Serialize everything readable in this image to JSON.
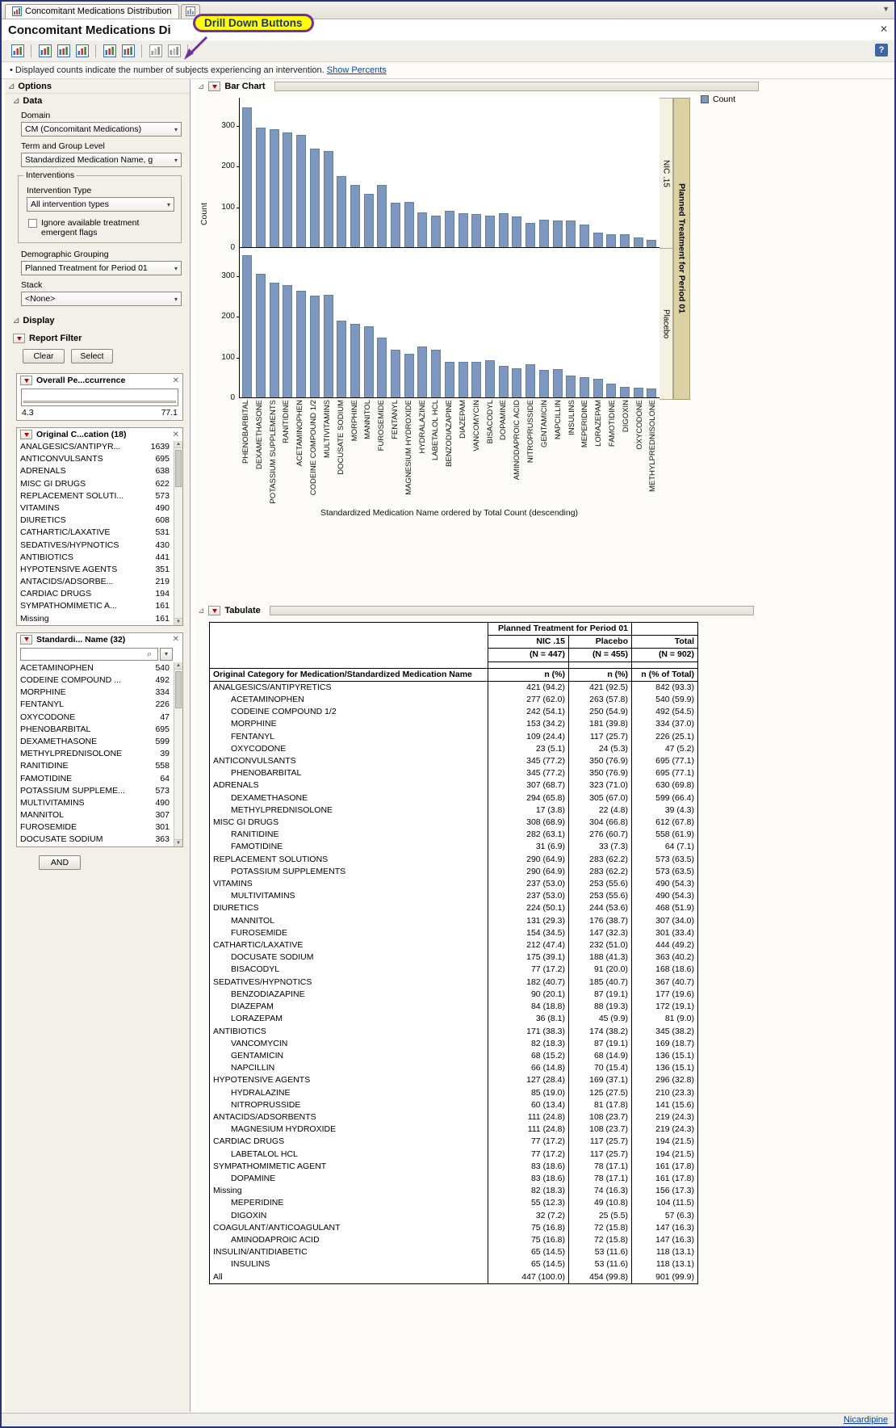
{
  "icons": {
    "disclosure": "⊿",
    "close": "✕",
    "dropdown": "▾",
    "search": "⌕",
    "bullet": "•",
    "help": "?",
    "menu_chevron": "▼",
    "scroll_up": "▲",
    "scroll_down": "▼"
  },
  "window": {
    "tab_title": "Concomitant Medications Distribution",
    "page_title": "Concomitant Medications Di",
    "callout": "Drill Down Buttons"
  },
  "toolbar": {
    "icons": [
      "open-report-icon",
      "data-table-icon",
      "summary-data-table-icon",
      "subset-data-table-icon",
      "graph-builder-icon",
      "distribution-icon",
      "previous-analysis-icon",
      "next-analysis-icon"
    ]
  },
  "info_bar": {
    "text": "Displayed counts indicate the number of subjects experiencing an intervention.",
    "link": "Show Percents"
  },
  "sidebar": {
    "title": "Options",
    "data_section": {
      "title": "Data",
      "domain_label": "Domain",
      "domain_value": "CM (Concomitant Medications)",
      "term_label": "Term and Group Level",
      "term_value": "Standardized Medication Name, g",
      "interventions_title": "Interventions",
      "intervention_type_label": "Intervention Type",
      "intervention_type_value": "All intervention types",
      "checkbox_label": "Ignore available treatment emergent flags",
      "demo_label": "Demographic Grouping",
      "demo_value": "Planned Treatment for Period 01",
      "stack_label": "Stack",
      "stack_value": "<None>"
    },
    "display_section": {
      "title": "Display",
      "report_filter": "Report Filter",
      "clear": "Clear",
      "select": "Select",
      "and_button": "AND"
    },
    "filter1": {
      "title": "Overall Pe...ccurrence",
      "min": "4.3",
      "max": "77.1"
    },
    "filter2": {
      "title": "Original C...cation (18)",
      "items": [
        {
          "label": "ANALGESICS/ANTIPYR...",
          "value": "1639"
        },
        {
          "label": "ANTICONVULSANTS",
          "value": "695"
        },
        {
          "label": "ADRENALS",
          "value": "638"
        },
        {
          "label": "MISC GI DRUGS",
          "value": "622"
        },
        {
          "label": "REPLACEMENT SOLUTI...",
          "value": "573"
        },
        {
          "label": "VITAMINS",
          "value": "490"
        },
        {
          "label": "DIURETICS",
          "value": "608"
        },
        {
          "label": "CATHARTIC/LAXATIVE",
          "value": "531"
        },
        {
          "label": "SEDATIVES/HYPNOTICS",
          "value": "430"
        },
        {
          "label": "ANTIBIOTICS",
          "value": "441"
        },
        {
          "label": "HYPOTENSIVE AGENTS",
          "value": "351"
        },
        {
          "label": "ANTACIDS/ADSORBE...",
          "value": "219"
        },
        {
          "label": "CARDIAC DRUGS",
          "value": "194"
        },
        {
          "label": "SYMPATHOMIMETIC A...",
          "value": "161"
        },
        {
          "label": "Missing",
          "value": "161"
        }
      ]
    },
    "filter3": {
      "title": "Standardi... Name (32)",
      "items": [
        {
          "label": "ACETAMINOPHEN",
          "value": "540"
        },
        {
          "label": "CODEINE COMPOUND ...",
          "value": "492"
        },
        {
          "label": "MORPHINE",
          "value": "334"
        },
        {
          "label": "FENTANYL",
          "value": "226"
        },
        {
          "label": "OXYCODONE",
          "value": "47"
        },
        {
          "label": "PHENOBARBITAL",
          "value": "695"
        },
        {
          "label": "DEXAMETHASONE",
          "value": "599"
        },
        {
          "label": "METHYLPREDNISOLONE",
          "value": "39"
        },
        {
          "label": "RANITIDINE",
          "value": "558"
        },
        {
          "label": "FAMOTIDINE",
          "value": "64"
        },
        {
          "label": "POTASSIUM SUPPLEME...",
          "value": "573"
        },
        {
          "label": "MULTIVITAMINS",
          "value": "490"
        },
        {
          "label": "MANNITOL",
          "value": "307"
        },
        {
          "label": "FUROSEMIDE",
          "value": "301"
        },
        {
          "label": "DOCUSATE SODIUM",
          "value": "363"
        }
      ]
    }
  },
  "chart_section": {
    "title": "Bar Chart",
    "legend_label": "Count",
    "ylabel": "Count",
    "xlabel": "Standardized Medication Name ordered by Total Count (descending)",
    "group_strip": "Planned Treatment for Period 01"
  },
  "chart_data": {
    "type": "bar",
    "title": "Bar Chart",
    "xlabel": "Standardized Medication Name ordered by Total Count (descending)",
    "ylabel": "Count",
    "ylim": [
      0,
      370
    ],
    "yticks": [
      0,
      100,
      200,
      300
    ],
    "legend_position": "right-top",
    "grid": false,
    "categories": [
      "PHENOBARBITAL",
      "DEXAMETHASONE",
      "POTASSIUM SUPPLEMENTS",
      "RANITIDINE",
      "ACETAMINOPHEN",
      "CODEINE COMPOUND 1/2",
      "MULTIVITAMINS",
      "DOCUSATE SODIUM",
      "MORPHINE",
      "MANNITOL",
      "FUROSEMIDE",
      "FENTANYL",
      "MAGNESIUM HYDROXIDE",
      "HYDRALAZINE",
      "LABETALOL HCL",
      "BENZODIAZAPINE",
      "DIAZEPAM",
      "VANCOMYCIN",
      "BISACODYL",
      "DOPAMINE",
      "AMINODAPROIC ACID",
      "NITROPRUSSIDE",
      "GENTAMICIN",
      "NAPCILLIN",
      "INSULINS",
      "MEPERIDINE",
      "LORAZEPAM",
      "FAMOTIDINE",
      "DIGOXIN",
      "OXYCODONE",
      "METHYLPREDNISOLONE"
    ],
    "series": [
      {
        "name": "NIC .15",
        "values": [
          345,
          294,
          290,
          282,
          277,
          242,
          237,
          175,
          153,
          131,
          154,
          109,
          111,
          85,
          77,
          90,
          84,
          82,
          77,
          83,
          75,
          60,
          68,
          66,
          65,
          55,
          36,
          31,
          32,
          23,
          17
        ]
      },
      {
        "name": "Placebo",
        "values": [
          350,
          305,
          283,
          276,
          263,
          250,
          253,
          188,
          181,
          176,
          147,
          117,
          108,
          125,
          117,
          87,
          88,
          87,
          91,
          78,
          72,
          81,
          68,
          70,
          53,
          49,
          45,
          33,
          25,
          24,
          22
        ]
      }
    ]
  },
  "table_section": {
    "title": "Tabulate",
    "header": {
      "group": "Planned Treatment for Period 01",
      "col1": "NIC .15",
      "col2": "Placebo",
      "col3": "Total",
      "n1": "(N = 447)",
      "n2": "(N = 455)",
      "n3": "(N = 902)",
      "rowlabel": "Original Category for Medication/Standardized Medication Name",
      "stat1": "n (%)",
      "stat2": "n (%)",
      "stat3": "n (% of Total)"
    },
    "rows": [
      [
        "ANALGESICS/ANTIPYRETICS",
        0,
        "421 (94.2)",
        "421 (92.5)",
        "842 (93.3)"
      ],
      [
        "ACETAMINOPHEN",
        1,
        "277 (62.0)",
        "263 (57.8)",
        "540 (59.9)"
      ],
      [
        "CODEINE COMPOUND 1/2",
        1,
        "242 (54.1)",
        "250 (54.9)",
        "492 (54.5)"
      ],
      [
        "MORPHINE",
        1,
        "153 (34.2)",
        "181 (39.8)",
        "334 (37.0)"
      ],
      [
        "FENTANYL",
        1,
        "109 (24.4)",
        "117 (25.7)",
        "226 (25.1)"
      ],
      [
        "OXYCODONE",
        1,
        "23 (5.1)",
        "24 (5.3)",
        "47 (5.2)"
      ],
      [
        "ANTICONVULSANTS",
        0,
        "345 (77.2)",
        "350 (76.9)",
        "695 (77.1)"
      ],
      [
        "PHENOBARBITAL",
        1,
        "345 (77.2)",
        "350 (76.9)",
        "695 (77.1)"
      ],
      [
        "ADRENALS",
        0,
        "307 (68.7)",
        "323 (71.0)",
        "630 (69.8)"
      ],
      [
        "DEXAMETHASONE",
        1,
        "294 (65.8)",
        "305 (67.0)",
        "599 (66.4)"
      ],
      [
        "METHYLPREDNISOLONE",
        1,
        "17 (3.8)",
        "22 (4.8)",
        "39 (4.3)"
      ],
      [
        "MISC GI DRUGS",
        0,
        "308 (68.9)",
        "304 (66.8)",
        "612 (67.8)"
      ],
      [
        "RANITIDINE",
        1,
        "282 (63.1)",
        "276 (60.7)",
        "558 (61.9)"
      ],
      [
        "FAMOTIDINE",
        1,
        "31 (6.9)",
        "33 (7.3)",
        "64 (7.1)"
      ],
      [
        "REPLACEMENT SOLUTIONS",
        0,
        "290 (64.9)",
        "283 (62.2)",
        "573 (63.5)"
      ],
      [
        "POTASSIUM SUPPLEMENTS",
        1,
        "290 (64.9)",
        "283 (62.2)",
        "573 (63.5)"
      ],
      [
        "VITAMINS",
        0,
        "237 (53.0)",
        "253 (55.6)",
        "490 (54.3)"
      ],
      [
        "MULTIVITAMINS",
        1,
        "237 (53.0)",
        "253 (55.6)",
        "490 (54.3)"
      ],
      [
        "DIURETICS",
        0,
        "224 (50.1)",
        "244 (53.6)",
        "468 (51.9)"
      ],
      [
        "MANNITOL",
        1,
        "131 (29.3)",
        "176 (38.7)",
        "307 (34.0)"
      ],
      [
        "FUROSEMIDE",
        1,
        "154 (34.5)",
        "147 (32.3)",
        "301 (33.4)"
      ],
      [
        "CATHARTIC/LAXATIVE",
        0,
        "212 (47.4)",
        "232 (51.0)",
        "444 (49.2)"
      ],
      [
        "DOCUSATE SODIUM",
        1,
        "175 (39.1)",
        "188 (41.3)",
        "363 (40.2)"
      ],
      [
        "BISACODYL",
        1,
        "77 (17.2)",
        "91 (20.0)",
        "168 (18.6)"
      ],
      [
        "SEDATIVES/HYPNOTICS",
        0,
        "182 (40.7)",
        "185 (40.7)",
        "367 (40.7)"
      ],
      [
        "BENZODIAZAPINE",
        1,
        "90 (20.1)",
        "87 (19.1)",
        "177 (19.6)"
      ],
      [
        "DIAZEPAM",
        1,
        "84 (18.8)",
        "88 (19.3)",
        "172 (19.1)"
      ],
      [
        "LORAZEPAM",
        1,
        "36 (8.1)",
        "45 (9.9)",
        "81 (9.0)"
      ],
      [
        "ANTIBIOTICS",
        0,
        "171 (38.3)",
        "174 (38.2)",
        "345 (38.2)"
      ],
      [
        "VANCOMYCIN",
        1,
        "82 (18.3)",
        "87 (19.1)",
        "169 (18.7)"
      ],
      [
        "GENTAMICIN",
        1,
        "68 (15.2)",
        "68 (14.9)",
        "136 (15.1)"
      ],
      [
        "NAPCILLIN",
        1,
        "66 (14.8)",
        "70 (15.4)",
        "136 (15.1)"
      ],
      [
        "HYPOTENSIVE AGENTS",
        0,
        "127 (28.4)",
        "169 (37.1)",
        "296 (32.8)"
      ],
      [
        "HYDRALAZINE",
        1,
        "85 (19.0)",
        "125 (27.5)",
        "210 (23.3)"
      ],
      [
        "NITROPRUSSIDE",
        1,
        "60 (13.4)",
        "81 (17.8)",
        "141 (15.6)"
      ],
      [
        "ANTACIDS/ADSORBENTS",
        0,
        "111 (24.8)",
        "108 (23.7)",
        "219 (24.3)"
      ],
      [
        "MAGNESIUM HYDROXIDE",
        1,
        "111 (24.8)",
        "108 (23.7)",
        "219 (24.3)"
      ],
      [
        "CARDIAC DRUGS",
        0,
        "77 (17.2)",
        "117 (25.7)",
        "194 (21.5)"
      ],
      [
        "LABETALOL HCL",
        1,
        "77 (17.2)",
        "117 (25.7)",
        "194 (21.5)"
      ],
      [
        "SYMPATHOMIMETIC AGENT",
        0,
        "83 (18.6)",
        "78 (17.1)",
        "161 (17.8)"
      ],
      [
        "DOPAMINE",
        1,
        "83 (18.6)",
        "78 (17.1)",
        "161 (17.8)"
      ],
      [
        "Missing",
        0,
        "82 (18.3)",
        "74 (16.3)",
        "156 (17.3)"
      ],
      [
        "MEPERIDINE",
        1,
        "55 (12.3)",
        "49 (10.8)",
        "104 (11.5)"
      ],
      [
        "DIGOXIN",
        1,
        "32 (7.2)",
        "25 (5.5)",
        "57 (6.3)"
      ],
      [
        "COAGULANT/ANTICOAGULANT",
        0,
        "75 (16.8)",
        "72 (15.8)",
        "147 (16.3)"
      ],
      [
        "AMINODAPROIC ACID",
        1,
        "75 (16.8)",
        "72 (15.8)",
        "147 (16.3)"
      ],
      [
        "INSULIN/ANTIDIABETIC",
        0,
        "65 (14.5)",
        "53 (11.6)",
        "118 (13.1)"
      ],
      [
        "INSULINS",
        1,
        "65 (14.5)",
        "53 (11.6)",
        "118 (13.1)"
      ],
      [
        "All",
        0,
        "447 (100.0)",
        "454 (99.8)",
        "901 (99.9)"
      ]
    ]
  },
  "footer": {
    "link": "Nicardipine"
  }
}
